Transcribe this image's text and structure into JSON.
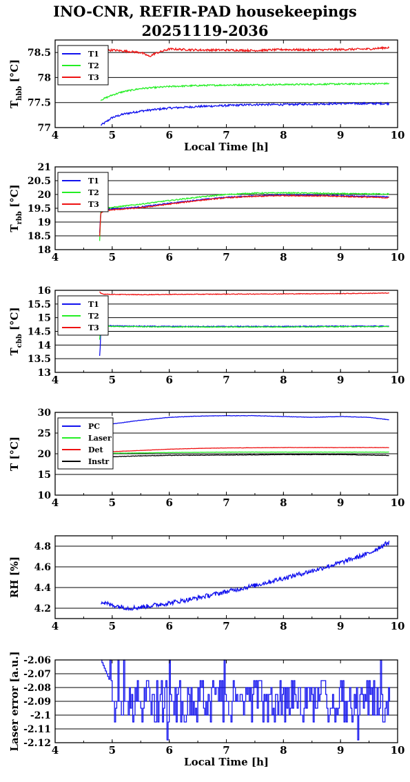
{
  "title_line1": "INO-CNR, REFIR-PAD housekeepings",
  "title_line2": "20251119-2036",
  "colors": {
    "blue": "#1010ee",
    "green": "#22ee22",
    "red": "#ee1111",
    "black": "#000000"
  },
  "chart_data": [
    {
      "type": "line",
      "ylabel_main": "T",
      "ylabel_sub": "hbb",
      "ylabel_unit": "[°C]",
      "xlabel": "Local Time [h]",
      "xlim": [
        4,
        10
      ],
      "ylim": [
        77,
        78.75
      ],
      "xticks": [
        "4",
        "5",
        "6",
        "7",
        "8",
        "9",
        "10"
      ],
      "yticks": [
        {
          "value": 77,
          "label": "77"
        },
        {
          "value": 77.5,
          "label": "77.5"
        },
        {
          "value": 78,
          "label": "78"
        },
        {
          "value": 78.5,
          "label": "78.5"
        }
      ],
      "grid": "horizontal",
      "legend": "top-left",
      "series": [
        {
          "name": "T1",
          "color": "blue",
          "noise": 0.02,
          "points": [
            [
              4.8,
              77.05
            ],
            [
              4.85,
              77.08
            ],
            [
              4.9,
              77.12
            ],
            [
              5.0,
              77.2
            ],
            [
              5.2,
              77.27
            ],
            [
              5.5,
              77.33
            ],
            [
              6.0,
              77.39
            ],
            [
              6.5,
              77.42
            ],
            [
              7.0,
              77.44
            ],
            [
              7.5,
              77.46
            ],
            [
              8.0,
              77.46
            ],
            [
              8.5,
              77.47
            ],
            [
              9.0,
              77.48
            ],
            [
              9.5,
              77.48
            ],
            [
              9.85,
              77.48
            ]
          ]
        },
        {
          "name": "T2",
          "color": "green",
          "noise": 0.015,
          "points": [
            [
              4.8,
              77.55
            ],
            [
              4.9,
              77.6
            ],
            [
              5.0,
              77.65
            ],
            [
              5.2,
              77.72
            ],
            [
              5.5,
              77.78
            ],
            [
              6.0,
              77.82
            ],
            [
              6.5,
              77.84
            ],
            [
              7.0,
              77.85
            ],
            [
              8.0,
              77.86
            ],
            [
              9.0,
              77.87
            ],
            [
              9.85,
              77.88
            ]
          ]
        },
        {
          "name": "T3",
          "color": "red",
          "noise": 0.02,
          "points": [
            [
              4.8,
              78.52
            ],
            [
              5.0,
              78.55
            ],
            [
              5.3,
              78.52
            ],
            [
              5.5,
              78.5
            ],
            [
              5.6,
              78.45
            ],
            [
              5.65,
              78.42
            ],
            [
              5.75,
              78.48
            ],
            [
              6.0,
              78.57
            ],
            [
              6.5,
              78.55
            ],
            [
              7.0,
              78.55
            ],
            [
              7.5,
              78.54
            ],
            [
              8.0,
              78.56
            ],
            [
              8.5,
              78.55
            ],
            [
              9.0,
              78.56
            ],
            [
              9.5,
              78.57
            ],
            [
              9.85,
              78.6
            ]
          ]
        }
      ]
    },
    {
      "type": "line",
      "ylabel_main": "T",
      "ylabel_sub": "rbb",
      "ylabel_unit": "[°C]",
      "xlabel": "",
      "xlim": [
        4,
        10
      ],
      "ylim": [
        18,
        21
      ],
      "xticks": [
        "4",
        "5",
        "6",
        "7",
        "8",
        "9",
        "10"
      ],
      "yticks": [
        {
          "value": 18,
          "label": "18"
        },
        {
          "value": 18.5,
          "label": "18.5"
        },
        {
          "value": 19,
          "label": "19"
        },
        {
          "value": 19.5,
          "label": "19.5"
        },
        {
          "value": 20,
          "label": "20"
        },
        {
          "value": 20.5,
          "label": "20.5"
        },
        {
          "value": 21,
          "label": "21"
        }
      ],
      "grid": "horizontal",
      "legend": "top-left",
      "series": [
        {
          "name": "T1",
          "color": "blue",
          "noise": 0.02,
          "points": [
            [
              4.78,
              18.6
            ],
            [
              4.8,
              19.35
            ],
            [
              4.85,
              19.45
            ],
            [
              5.0,
              19.47
            ],
            [
              5.5,
              19.55
            ],
            [
              6.0,
              19.68
            ],
            [
              6.5,
              19.8
            ],
            [
              7.0,
              19.9
            ],
            [
              7.5,
              19.95
            ],
            [
              8.0,
              19.98
            ],
            [
              8.5,
              19.97
            ],
            [
              9.0,
              19.95
            ],
            [
              9.5,
              19.93
            ],
            [
              9.85,
              19.92
            ]
          ]
        },
        {
          "name": "T2",
          "color": "green",
          "noise": 0.02,
          "points": [
            [
              4.78,
              18.3
            ],
            [
              4.8,
              19.4
            ],
            [
              4.85,
              19.5
            ],
            [
              5.0,
              19.53
            ],
            [
              5.5,
              19.65
            ],
            [
              6.0,
              19.78
            ],
            [
              6.5,
              19.9
            ],
            [
              7.0,
              20.0
            ],
            [
              7.5,
              20.05
            ],
            [
              8.0,
              20.06
            ],
            [
              8.5,
              20.05
            ],
            [
              9.0,
              20.03
            ],
            [
              9.5,
              20.02
            ],
            [
              9.85,
              20.02
            ]
          ]
        },
        {
          "name": "T3",
          "color": "red",
          "noise": 0.02,
          "points": [
            [
              4.78,
              18.5
            ],
            [
              4.8,
              19.3
            ],
            [
              4.85,
              19.42
            ],
            [
              5.0,
              19.44
            ],
            [
              5.5,
              19.52
            ],
            [
              6.0,
              19.65
            ],
            [
              6.5,
              19.78
            ],
            [
              7.0,
              19.88
            ],
            [
              7.5,
              19.93
            ],
            [
              8.0,
              19.96
            ],
            [
              8.5,
              19.95
            ],
            [
              9.0,
              19.93
            ],
            [
              9.5,
              19.9
            ],
            [
              9.85,
              19.88
            ]
          ]
        }
      ]
    },
    {
      "type": "line",
      "ylabel_main": "T",
      "ylabel_sub": "cbb",
      "ylabel_unit": "[°C]",
      "xlabel": "",
      "xlim": [
        4,
        10
      ],
      "ylim": [
        13,
        16
      ],
      "xticks": [
        "4",
        "5",
        "6",
        "7",
        "8",
        "9",
        "10"
      ],
      "yticks": [
        {
          "value": 13,
          "label": "13"
        },
        {
          "value": 13.5,
          "label": "13.5"
        },
        {
          "value": 14,
          "label": "14"
        },
        {
          "value": 14.5,
          "label": "14.5"
        },
        {
          "value": 15,
          "label": "15"
        },
        {
          "value": 15.5,
          "label": "15.5"
        },
        {
          "value": 16,
          "label": "16"
        }
      ],
      "grid": "horizontal",
      "legend": "top-left",
      "series": [
        {
          "name": "T1",
          "color": "blue",
          "noise": 0.015,
          "points": [
            [
              4.78,
              13.6
            ],
            [
              4.79,
              13.9
            ],
            [
              4.8,
              14.6
            ],
            [
              4.83,
              14.72
            ],
            [
              5.0,
              14.7
            ],
            [
              6.0,
              14.68
            ],
            [
              7.0,
              14.68
            ],
            [
              8.0,
              14.68
            ],
            [
              9.0,
              14.69
            ],
            [
              9.85,
              14.69
            ]
          ]
        },
        {
          "name": "T2",
          "color": "green",
          "noise": 0.015,
          "points": [
            [
              4.78,
              14.2
            ],
            [
              4.8,
              14.65
            ],
            [
              4.83,
              14.7
            ],
            [
              5.0,
              14.68
            ],
            [
              6.0,
              14.66
            ],
            [
              7.0,
              14.66
            ],
            [
              8.0,
              14.66
            ],
            [
              9.0,
              14.67
            ],
            [
              9.85,
              14.67
            ]
          ]
        },
        {
          "name": "T3",
          "color": "red",
          "noise": 0.012,
          "points": [
            [
              4.78,
              15.95
            ],
            [
              4.8,
              15.9
            ],
            [
              4.85,
              15.86
            ],
            [
              5.0,
              15.85
            ],
            [
              5.5,
              15.84
            ],
            [
              6.0,
              15.85
            ],
            [
              7.0,
              15.86
            ],
            [
              8.0,
              15.87
            ],
            [
              9.0,
              15.88
            ],
            [
              9.85,
              15.9
            ]
          ]
        }
      ]
    },
    {
      "type": "line",
      "ylabel_main": "T [°C]",
      "ylabel_sub": "",
      "ylabel_unit": "",
      "xlabel": "",
      "xlim": [
        4,
        10
      ],
      "ylim": [
        10,
        30
      ],
      "xticks": [
        "4",
        "5",
        "6",
        "7",
        "8",
        "9",
        "10"
      ],
      "yticks": [
        {
          "value": 10,
          "label": "10"
        },
        {
          "value": 15,
          "label": "15"
        },
        {
          "value": 20,
          "label": "20"
        },
        {
          "value": 25,
          "label": "25"
        },
        {
          "value": 30,
          "label": "30"
        }
      ],
      "grid": "horizontal",
      "legend": "top-left",
      "series": [
        {
          "name": "PC",
          "color": "blue",
          "noise": 0.05,
          "points": [
            [
              4.8,
              26.5
            ],
            [
              5.0,
              27.2
            ],
            [
              5.5,
              28.1
            ],
            [
              6.0,
              28.8
            ],
            [
              6.5,
              29.1
            ],
            [
              7.0,
              29.2
            ],
            [
              7.5,
              29.2
            ],
            [
              8.0,
              29.0
            ],
            [
              8.5,
              28.8
            ],
            [
              9.0,
              29.0
            ],
            [
              9.5,
              28.8
            ],
            [
              9.85,
              28.2
            ]
          ]
        },
        {
          "name": "Laser",
          "color": "green",
          "noise": 0.03,
          "points": [
            [
              4.8,
              20.1
            ],
            [
              5.5,
              20.2
            ],
            [
              6.0,
              20.3
            ],
            [
              7.0,
              20.4
            ],
            [
              8.0,
              20.4
            ],
            [
              9.0,
              20.4
            ],
            [
              9.85,
              20.4
            ]
          ]
        },
        {
          "name": "Det",
          "color": "red",
          "noise": 0.03,
          "points": [
            [
              4.8,
              20.4
            ],
            [
              5.5,
              20.8
            ],
            [
              6.0,
              21.1
            ],
            [
              6.5,
              21.3
            ],
            [
              7.0,
              21.4
            ],
            [
              8.0,
              21.5
            ],
            [
              9.0,
              21.5
            ],
            [
              9.85,
              21.5
            ]
          ]
        },
        {
          "name": "Instr",
          "color": "black",
          "noise": 0.06,
          "points": [
            [
              4.8,
              19.2
            ],
            [
              5.5,
              19.5
            ],
            [
              6.0,
              19.6
            ],
            [
              7.0,
              19.7
            ],
            [
              8.0,
              19.8
            ],
            [
              9.0,
              19.8
            ],
            [
              9.85,
              19.6
            ]
          ]
        }
      ]
    },
    {
      "type": "line",
      "ylabel_main": "RH [%]",
      "ylabel_sub": "",
      "ylabel_unit": "",
      "xlabel": "",
      "xlim": [
        4,
        10
      ],
      "ylim": [
        4.1,
        4.9
      ],
      "xticks": [
        "4",
        "5",
        "6",
        "7",
        "8",
        "9",
        "10"
      ],
      "yticks": [
        {
          "value": 4.2,
          "label": "4.2"
        },
        {
          "value": 4.4,
          "label": "4.4"
        },
        {
          "value": 4.6,
          "label": "4.6"
        },
        {
          "value": 4.8,
          "label": "4.8"
        }
      ],
      "grid": "horizontal",
      "legend": "none",
      "series": [
        {
          "name": "",
          "color": "blue",
          "noise": 0.022,
          "points": [
            [
              4.8,
              4.26
            ],
            [
              5.0,
              4.23
            ],
            [
              5.3,
              4.2
            ],
            [
              5.5,
              4.21
            ],
            [
              6.0,
              4.25
            ],
            [
              6.5,
              4.3
            ],
            [
              7.0,
              4.36
            ],
            [
              7.5,
              4.42
            ],
            [
              8.0,
              4.49
            ],
            [
              8.5,
              4.56
            ],
            [
              9.0,
              4.64
            ],
            [
              9.5,
              4.73
            ],
            [
              9.85,
              4.84
            ]
          ]
        }
      ]
    },
    {
      "type": "line",
      "ylabel_main": "Laser error [a.u.]",
      "ylabel_sub": "",
      "ylabel_unit": "",
      "xlabel": "Local Time [h]",
      "xlim": [
        4,
        10
      ],
      "ylim": [
        -2.12,
        -2.06
      ],
      "xticks": [
        "4",
        "5",
        "6",
        "7",
        "8",
        "9",
        "10"
      ],
      "yticks": [
        {
          "value": -2.12,
          "label": "-2.12"
        },
        {
          "value": -2.11,
          "label": "-2.11"
        },
        {
          "value": -2.1,
          "label": "-2.1"
        },
        {
          "value": -2.09,
          "label": "-2.09"
        },
        {
          "value": -2.08,
          "label": "-2.08"
        },
        {
          "value": -2.07,
          "label": "-2.07"
        },
        {
          "value": -2.06,
          "label": "-2.06"
        }
      ],
      "grid": "horizontal",
      "legend": "none",
      "series": [
        {
          "name": "",
          "color": "blue",
          "noise": 0,
          "step": true,
          "levels": [
            -2.075,
            -2.08,
            -2.085,
            -2.09,
            -2.095,
            -2.1,
            -2.105
          ],
          "spikes": [
            [
              4.95,
              -2.06
            ],
            [
              5.1,
              -2.06
            ],
            [
              5.2,
              -2.06
            ],
            [
              5.95,
              -2.118
            ],
            [
              6.0,
              -2.06
            ],
            [
              6.95,
              -2.06
            ],
            [
              9.3,
              -2.118
            ],
            [
              9.7,
              -2.06
            ]
          ],
          "points": [
            [
              4.8,
              -2.06
            ],
            [
              4.85,
              -2.065
            ],
            [
              4.95,
              -2.075
            ],
            [
              9.85,
              -2.075
            ]
          ]
        }
      ]
    }
  ]
}
